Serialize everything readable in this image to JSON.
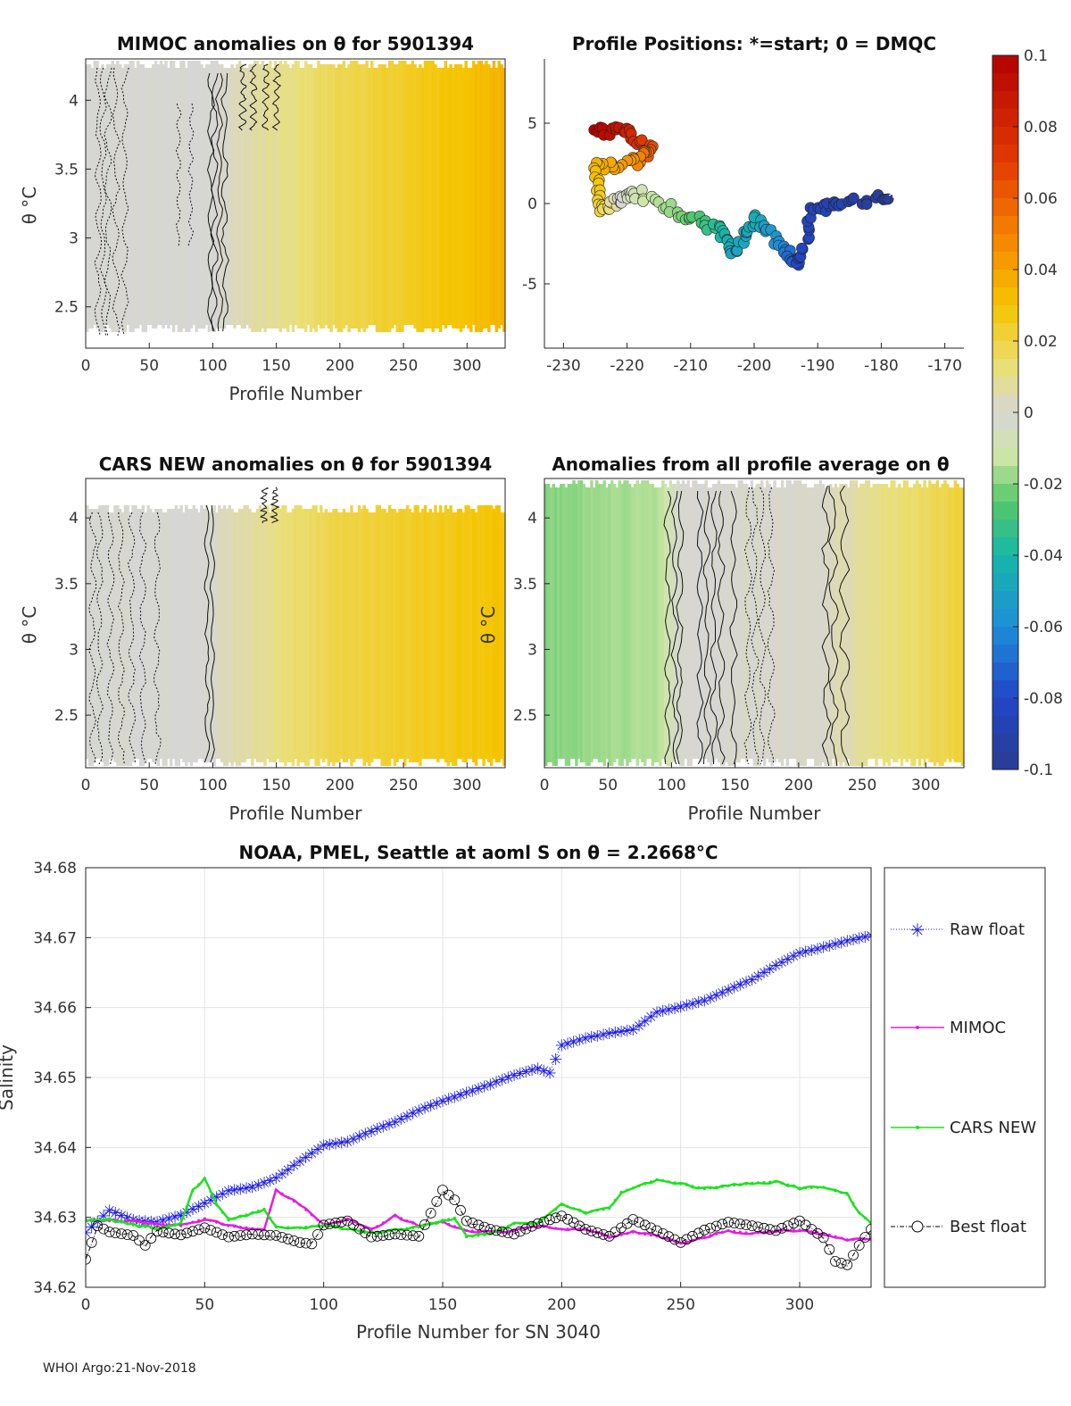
{
  "footer": "WHOI Argo:21-Nov-2018",
  "colorbar": {
    "tick_labels": [
      "0.1",
      "0.08",
      "0.06",
      "0.04",
      "0.02",
      "0",
      "-0.02",
      "-0.04",
      "-0.06",
      "-0.08",
      "-0.1"
    ],
    "range": [
      -0.1,
      0.1
    ]
  },
  "chart_data": [
    {
      "type": "heatmap",
      "title": "MIMOC anomalies on θ  for 5901394",
      "xlabel": "Profile Number",
      "ylabel": "θ °C",
      "xlim": [
        0,
        330
      ],
      "ylim": [
        2.2,
        4.3
      ],
      "xticks": [
        "0",
        "50",
        "100",
        "150",
        "200",
        "250",
        "300"
      ],
      "yticks": [
        "2.5",
        "3",
        "3.5",
        "4"
      ],
      "anomaly_trend": [
        {
          "x": 0,
          "v": 0.0
        },
        {
          "x": 100,
          "v": 0.0
        },
        {
          "x": 200,
          "v": 0.018
        },
        {
          "x": 330,
          "v": 0.035
        }
      ]
    },
    {
      "type": "scatter",
      "title": "Profile Positions: *=start; 0 = DMQC",
      "xlim": [
        -233,
        -167
      ],
      "ylim": [
        -9,
        9
      ],
      "xticks": [
        "-230",
        "-220",
        "-210",
        "-200",
        "-190",
        "-180",
        "-170"
      ],
      "yticks": [
        "-5",
        "0",
        "5"
      ],
      "track": [
        {
          "lon": -178,
          "lat": 0.5,
          "v": -0.1
        },
        {
          "lon": -186,
          "lat": 0.0,
          "v": -0.09
        },
        {
          "lon": -191,
          "lat": -0.5,
          "v": -0.085
        },
        {
          "lon": -193,
          "lat": -4.0,
          "v": -0.08
        },
        {
          "lon": -196,
          "lat": -2.5,
          "v": -0.06
        },
        {
          "lon": -200,
          "lat": -0.8,
          "v": -0.045
        },
        {
          "lon": -203,
          "lat": -3.0,
          "v": -0.05
        },
        {
          "lon": -206,
          "lat": -1.5,
          "v": -0.035
        },
        {
          "lon": -212,
          "lat": -0.6,
          "v": -0.02
        },
        {
          "lon": -218,
          "lat": 0.6,
          "v": -0.01
        },
        {
          "lon": -221,
          "lat": 0.3,
          "v": 0.0
        },
        {
          "lon": -224,
          "lat": -0.3,
          "v": 0.02
        },
        {
          "lon": -225,
          "lat": 2.3,
          "v": 0.035
        },
        {
          "lon": -219,
          "lat": 2.5,
          "v": 0.045
        },
        {
          "lon": -216,
          "lat": 3.3,
          "v": 0.065
        },
        {
          "lon": -220,
          "lat": 4.4,
          "v": 0.085
        },
        {
          "lon": -225,
          "lat": 4.6,
          "v": 0.1
        }
      ]
    },
    {
      "type": "heatmap",
      "title": "CARS NEW anomalies on θ for 5901394",
      "xlabel": "Profile Number",
      "ylabel": "θ °C",
      "xlim": [
        0,
        330
      ],
      "ylim": [
        2.1,
        4.3
      ],
      "xticks": [
        "0",
        "50",
        "100",
        "150",
        "200",
        "250",
        "300"
      ],
      "yticks": [
        "2.5",
        "3",
        "3.5",
        "4"
      ],
      "anomaly_trend": [
        {
          "x": 0,
          "v": 0.0
        },
        {
          "x": 90,
          "v": 0.0
        },
        {
          "x": 200,
          "v": 0.02
        },
        {
          "x": 330,
          "v": 0.03
        }
      ]
    },
    {
      "type": "heatmap",
      "title": "Anomalies from all profile average on θ",
      "xlabel": "Profile Number",
      "ylabel": "θ °C",
      "xlim": [
        0,
        330
      ],
      "ylim": [
        2.1,
        4.3
      ],
      "xticks": [
        "0",
        "50",
        "100",
        "150",
        "200",
        "250",
        "300"
      ],
      "yticks": [
        "2.5",
        "3",
        "3.5",
        "4"
      ],
      "anomaly_trend": [
        {
          "x": 0,
          "v": -0.02
        },
        {
          "x": 90,
          "v": -0.015
        },
        {
          "x": 110,
          "v": 0.0
        },
        {
          "x": 220,
          "v": 0.002
        },
        {
          "x": 330,
          "v": 0.022
        }
      ]
    },
    {
      "type": "line",
      "title": "NOAA, PMEL, Seattle at aoml S on θ = 2.2668°C",
      "xlabel": "Profile Number for SN 3040",
      "ylabel": "Salinity",
      "xlim": [
        0,
        330
      ],
      "ylim": [
        34.62,
        34.68
      ],
      "xticks": [
        "0",
        "50",
        "100",
        "150",
        "200",
        "250",
        "300"
      ],
      "yticks": [
        "34.62",
        "34.63",
        "34.64",
        "34.65",
        "34.66",
        "34.67",
        "34.68"
      ],
      "grid": true,
      "legend": "right",
      "series": [
        {
          "name": "Raw float",
          "color": "#1a1ae6",
          "marker": "star",
          "x": [
            0,
            10,
            20,
            30,
            40,
            50,
            60,
            70,
            80,
            90,
            100,
            110,
            120,
            130,
            140,
            150,
            160,
            170,
            180,
            190,
            195,
            200,
            210,
            220,
            230,
            240,
            250,
            260,
            270,
            280,
            290,
            300,
            310,
            320,
            330
          ],
          "y": [
            34.628,
            34.6312,
            34.6298,
            34.6295,
            34.6305,
            34.6322,
            34.634,
            34.6345,
            34.6358,
            34.6382,
            34.6405,
            34.641,
            34.6425,
            34.6438,
            34.6455,
            34.6468,
            34.648,
            34.6492,
            34.6505,
            34.6515,
            34.6508,
            34.6548,
            34.6558,
            34.6565,
            34.657,
            34.6595,
            34.6603,
            34.6612,
            34.6627,
            34.6642,
            34.6662,
            34.668,
            34.6688,
            34.6697,
            34.6705
          ]
        },
        {
          "name": "MIMOC",
          "color": "#e11ee1",
          "marker": "dot",
          "x": [
            0,
            20,
            40,
            50,
            60,
            75,
            80,
            90,
            100,
            110,
            120,
            130,
            140,
            150,
            160,
            175,
            190,
            200,
            210,
            220,
            230,
            240,
            250,
            260,
            270,
            280,
            290,
            300,
            310,
            320,
            330
          ],
          "y": [
            34.6295,
            34.6295,
            34.6288,
            34.6298,
            34.6288,
            34.6282,
            34.6339,
            34.6318,
            34.6289,
            34.6297,
            34.6282,
            34.6302,
            34.6288,
            34.6293,
            34.6281,
            34.6279,
            34.6288,
            34.6283,
            34.6284,
            34.6271,
            34.6279,
            34.6273,
            34.6263,
            34.6272,
            34.6281,
            34.6277,
            34.6281,
            34.6282,
            34.6277,
            34.6268,
            34.6269
          ]
        },
        {
          "name": "CARS NEW",
          "color": "#1ee11e",
          "marker": "dot",
          "x": [
            0,
            10,
            20,
            30,
            40,
            45,
            50,
            55,
            60,
            70,
            75,
            80,
            90,
            100,
            110,
            120,
            130,
            140,
            150,
            155,
            160,
            170,
            180,
            190,
            200,
            210,
            220,
            225,
            230,
            240,
            250,
            260,
            270,
            280,
            290,
            300,
            310,
            320,
            325,
            330
          ],
          "y": [
            34.6297,
            34.6297,
            34.6289,
            34.6284,
            34.6292,
            34.6338,
            34.6356,
            34.6318,
            34.6296,
            34.6306,
            34.6312,
            34.6286,
            34.6285,
            34.6289,
            34.6283,
            34.6278,
            34.6282,
            34.6286,
            34.6295,
            34.6299,
            34.6272,
            34.6276,
            34.6291,
            34.6292,
            34.6318,
            34.6307,
            34.6313,
            34.6336,
            34.6342,
            34.6354,
            34.6348,
            34.6341,
            34.6345,
            34.6349,
            34.6351,
            34.6342,
            34.6343,
            34.6333,
            34.6307,
            34.6291
          ]
        },
        {
          "name": "Best float",
          "color": "#000000",
          "marker": "circle",
          "x": [
            0,
            5,
            10,
            20,
            25,
            30,
            40,
            50,
            60,
            70,
            80,
            90,
            95,
            100,
            110,
            120,
            130,
            140,
            150,
            155,
            160,
            170,
            180,
            190,
            200,
            210,
            220,
            230,
            240,
            250,
            260,
            270,
            280,
            290,
            300,
            310,
            315,
            320,
            325,
            330
          ],
          "y": [
            34.624,
            34.6288,
            34.6279,
            34.6274,
            34.626,
            34.628,
            34.6275,
            34.6285,
            34.6272,
            34.6276,
            34.6274,
            34.6264,
            34.6262,
            34.6289,
            34.6295,
            34.6272,
            34.6276,
            34.6273,
            34.6339,
            34.6325,
            34.6295,
            34.6283,
            34.6276,
            34.6291,
            34.6302,
            34.6283,
            34.6273,
            34.6297,
            34.6281,
            34.6264,
            34.6282,
            34.6293,
            34.6288,
            34.6281,
            34.6295,
            34.6271,
            34.6237,
            34.6232,
            34.626,
            34.6283
          ]
        }
      ]
    }
  ]
}
